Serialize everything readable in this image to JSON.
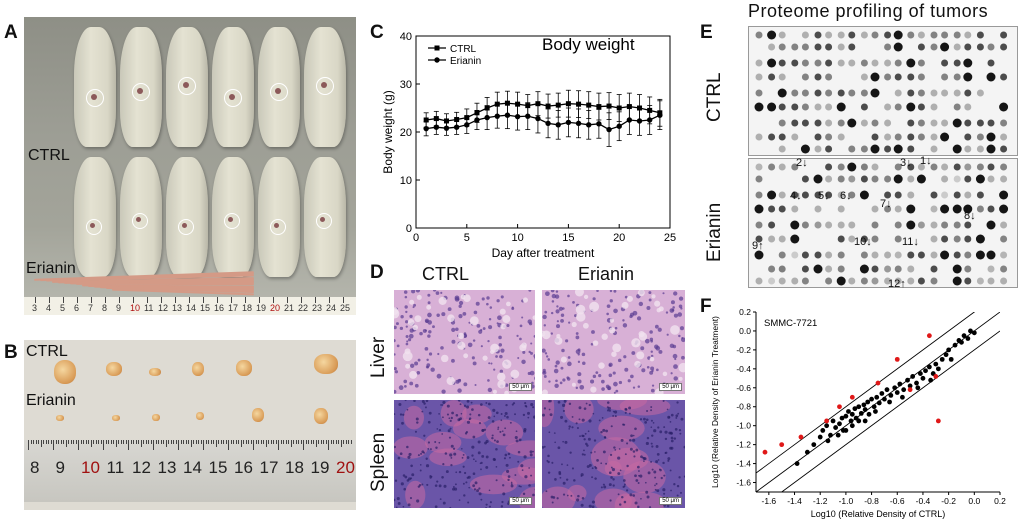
{
  "panels": {
    "a": {
      "letter": "A",
      "ctrl_label": "CTRL",
      "erianin_label": "Erianin",
      "ruler_numbers": [
        "3",
        "4",
        "5",
        "6",
        "7",
        "8",
        "9",
        "10",
        "11",
        "12",
        "13",
        "14",
        "15",
        "16",
        "17",
        "18",
        "19",
        "20",
        "21",
        "22",
        "23",
        "24",
        "25"
      ]
    },
    "b": {
      "letter": "B",
      "ctrl_label": "CTRL",
      "erianin_label": "Erianin",
      "ruler_numbers": [
        "8",
        "9",
        "10",
        "11",
        "12",
        "13",
        "14",
        "15",
        "16",
        "17",
        "18",
        "19",
        "20"
      ]
    },
    "c": {
      "letter": "C"
    },
    "d": {
      "letter": "D",
      "col_ctrl": "CTRL",
      "col_erianin": "Erianin",
      "row_liver": "Liver",
      "row_spleen": "Spleen",
      "scale": "50 μm"
    },
    "e": {
      "letter": "E",
      "title": "Proteome profiling of tumors",
      "row_ctrl": "CTRL",
      "row_erianin": "Erianin",
      "arrow_labels": [
        "1",
        "2",
        "3",
        "4",
        "5",
        "6",
        "7",
        "8",
        "9",
        "10",
        "11",
        "12"
      ]
    },
    "f": {
      "letter": "F"
    }
  },
  "chart_data": [
    {
      "type": "line",
      "title": "Body weight",
      "xlabel": "Day after treatment",
      "ylabel": "Body weight (g)",
      "xlim": [
        0,
        25
      ],
      "ylim": [
        0,
        40
      ],
      "xticks": [
        "0",
        "5",
        "10",
        "15",
        "20",
        "25"
      ],
      "yticks": [
        "0",
        "10",
        "20",
        "30",
        "40"
      ],
      "grid": false,
      "legend_position": "top-left",
      "x": [
        1,
        2,
        3,
        4,
        5,
        6,
        7,
        8,
        9,
        10,
        11,
        12,
        13,
        14,
        15,
        16,
        17,
        18,
        19,
        20,
        21,
        22,
        23,
        24
      ],
      "series": [
        {
          "name": "CTRL",
          "marker": "square",
          "values": [
            22.5,
            22.8,
            22.3,
            22.6,
            23,
            24,
            25,
            25.8,
            26,
            25.8,
            25.5,
            25.9,
            25.4,
            25.6,
            25.9,
            25.8,
            25.6,
            25.3,
            25.4,
            25,
            25.3,
            25,
            24.5,
            24
          ],
          "error": [
            1.5,
            1.5,
            1.5,
            1.5,
            1.8,
            2,
            2.2,
            2.5,
            2.5,
            2.5,
            2.3,
            2.5,
            2.5,
            2.5,
            2.8,
            2.8,
            2.8,
            2.8,
            2.8,
            2.8,
            2.8,
            2.8,
            2.8,
            2.8
          ]
        },
        {
          "name": "Erianin",
          "marker": "circle",
          "values": [
            20.7,
            21,
            20.8,
            21,
            21.5,
            22.5,
            23,
            23.3,
            23.5,
            23.2,
            23.3,
            22.8,
            21.8,
            21.5,
            22,
            21.8,
            21.5,
            21.7,
            20.5,
            21.2,
            22.5,
            22.3,
            22.5,
            23.5
          ],
          "error": [
            1.5,
            1.5,
            1.5,
            1.5,
            1.8,
            2,
            2.5,
            2.5,
            2.8,
            2.8,
            2.8,
            3,
            3,
            3,
            3,
            3,
            3,
            3,
            3.5,
            3,
            3,
            3,
            3,
            3
          ]
        }
      ]
    },
    {
      "type": "scatter",
      "title": "SMMC-7721",
      "xlabel": "Log10 (Relative Density of CTRL)",
      "ylabel": "Log10 (Relative Density of Erianin Treatment)",
      "xlim": [
        -1.7,
        0.2
      ],
      "ylim": [
        -1.7,
        0.2
      ],
      "xticks": [
        "-1.6",
        "-1.4",
        "-1.2",
        "-1.0",
        "-0.8",
        "-0.6",
        "-0.4",
        "-0.2",
        "0.0",
        "0.2"
      ],
      "yticks": [
        "0.2",
        "0.0",
        "-0.2",
        "-0.4",
        "-0.6",
        "-0.8",
        "-1.0",
        "-1.2",
        "-1.4",
        "-1.6"
      ],
      "reference_lines": [
        {
          "intercept": 0.2
        },
        {
          "intercept": 0
        },
        {
          "intercept": -0.2
        }
      ],
      "colors": {
        "normal": "#000000",
        "outlier": "#e01818"
      },
      "black_points": [
        [
          -1.38,
          -1.4
        ],
        [
          -1.3,
          -1.28
        ],
        [
          -1.25,
          -1.2
        ],
        [
          -1.2,
          -1.12
        ],
        [
          -1.18,
          -1.05
        ],
        [
          -1.15,
          -1.0
        ],
        [
          -1.12,
          -1.1
        ],
        [
          -1.1,
          -0.95
        ],
        [
          -1.08,
          -1.02
        ],
        [
          -1.05,
          -0.98
        ],
        [
          -1.03,
          -0.92
        ],
        [
          -1.02,
          -1.05
        ],
        [
          -1.0,
          -0.9
        ],
        [
          -0.98,
          -0.85
        ],
        [
          -0.96,
          -0.95
        ],
        [
          -0.95,
          -0.88
        ],
        [
          -0.93,
          -0.82
        ],
        [
          -0.92,
          -0.92
        ],
        [
          -0.9,
          -0.8
        ],
        [
          -0.88,
          -0.87
        ],
        [
          -0.86,
          -0.78
        ],
        [
          -0.85,
          -0.83
        ],
        [
          -0.83,
          -0.75
        ],
        [
          -0.82,
          -0.88
        ],
        [
          -0.8,
          -0.72
        ],
        [
          -0.78,
          -0.8
        ],
        [
          -0.76,
          -0.7
        ],
        [
          -0.74,
          -0.76
        ],
        [
          -0.72,
          -0.66
        ],
        [
          -0.7,
          -0.72
        ],
        [
          -0.68,
          -0.62
        ],
        [
          -0.65,
          -0.68
        ],
        [
          -0.62,
          -0.6
        ],
        [
          -0.6,
          -0.65
        ],
        [
          -0.58,
          -0.56
        ],
        [
          -0.55,
          -0.62
        ],
        [
          -0.52,
          -0.52
        ],
        [
          -0.5,
          -0.58
        ],
        [
          -0.48,
          -0.48
        ],
        [
          -0.45,
          -0.55
        ],
        [
          -0.42,
          -0.45
        ],
        [
          -0.4,
          -0.5
        ],
        [
          -0.38,
          -0.42
        ],
        [
          -0.35,
          -0.38
        ],
        [
          -0.32,
          -0.45
        ],
        [
          -0.3,
          -0.35
        ],
        [
          -0.28,
          -0.4
        ],
        [
          -0.25,
          -0.3
        ],
        [
          -0.22,
          -0.25
        ],
        [
          -0.2,
          -0.2
        ],
        [
          -0.18,
          -0.3
        ],
        [
          -0.15,
          -0.15
        ],
        [
          -0.12,
          -0.1
        ],
        [
          -0.1,
          -0.12
        ],
        [
          -0.08,
          -0.05
        ],
        [
          -0.05,
          -0.08
        ],
        [
          -0.03,
          0.0
        ],
        [
          0.0,
          -0.02
        ],
        [
          -1.0,
          -1.05
        ],
        [
          -0.95,
          -1.0
        ],
        [
          -0.9,
          -0.95
        ],
        [
          -0.85,
          -0.95
        ],
        [
          -1.06,
          -1.1
        ],
        [
          -1.14,
          -1.16
        ],
        [
          -0.77,
          -0.85
        ],
        [
          -0.66,
          -0.75
        ],
        [
          -0.56,
          -0.7
        ],
        [
          -0.44,
          -0.6
        ],
        [
          -0.34,
          -0.52
        ]
      ],
      "red_points": [
        [
          -1.63,
          -1.28
        ],
        [
          -1.5,
          -1.2
        ],
        [
          -1.35,
          -1.12
        ],
        [
          -1.15,
          -0.95
        ],
        [
          -1.05,
          -0.8
        ],
        [
          -0.95,
          -0.7
        ],
        [
          -0.75,
          -0.55
        ],
        [
          -0.6,
          -0.3
        ],
        [
          -0.35,
          -0.05
        ],
        [
          -0.3,
          -0.48
        ],
        [
          -0.28,
          -0.95
        ],
        [
          -0.5,
          -0.62
        ]
      ]
    }
  ]
}
